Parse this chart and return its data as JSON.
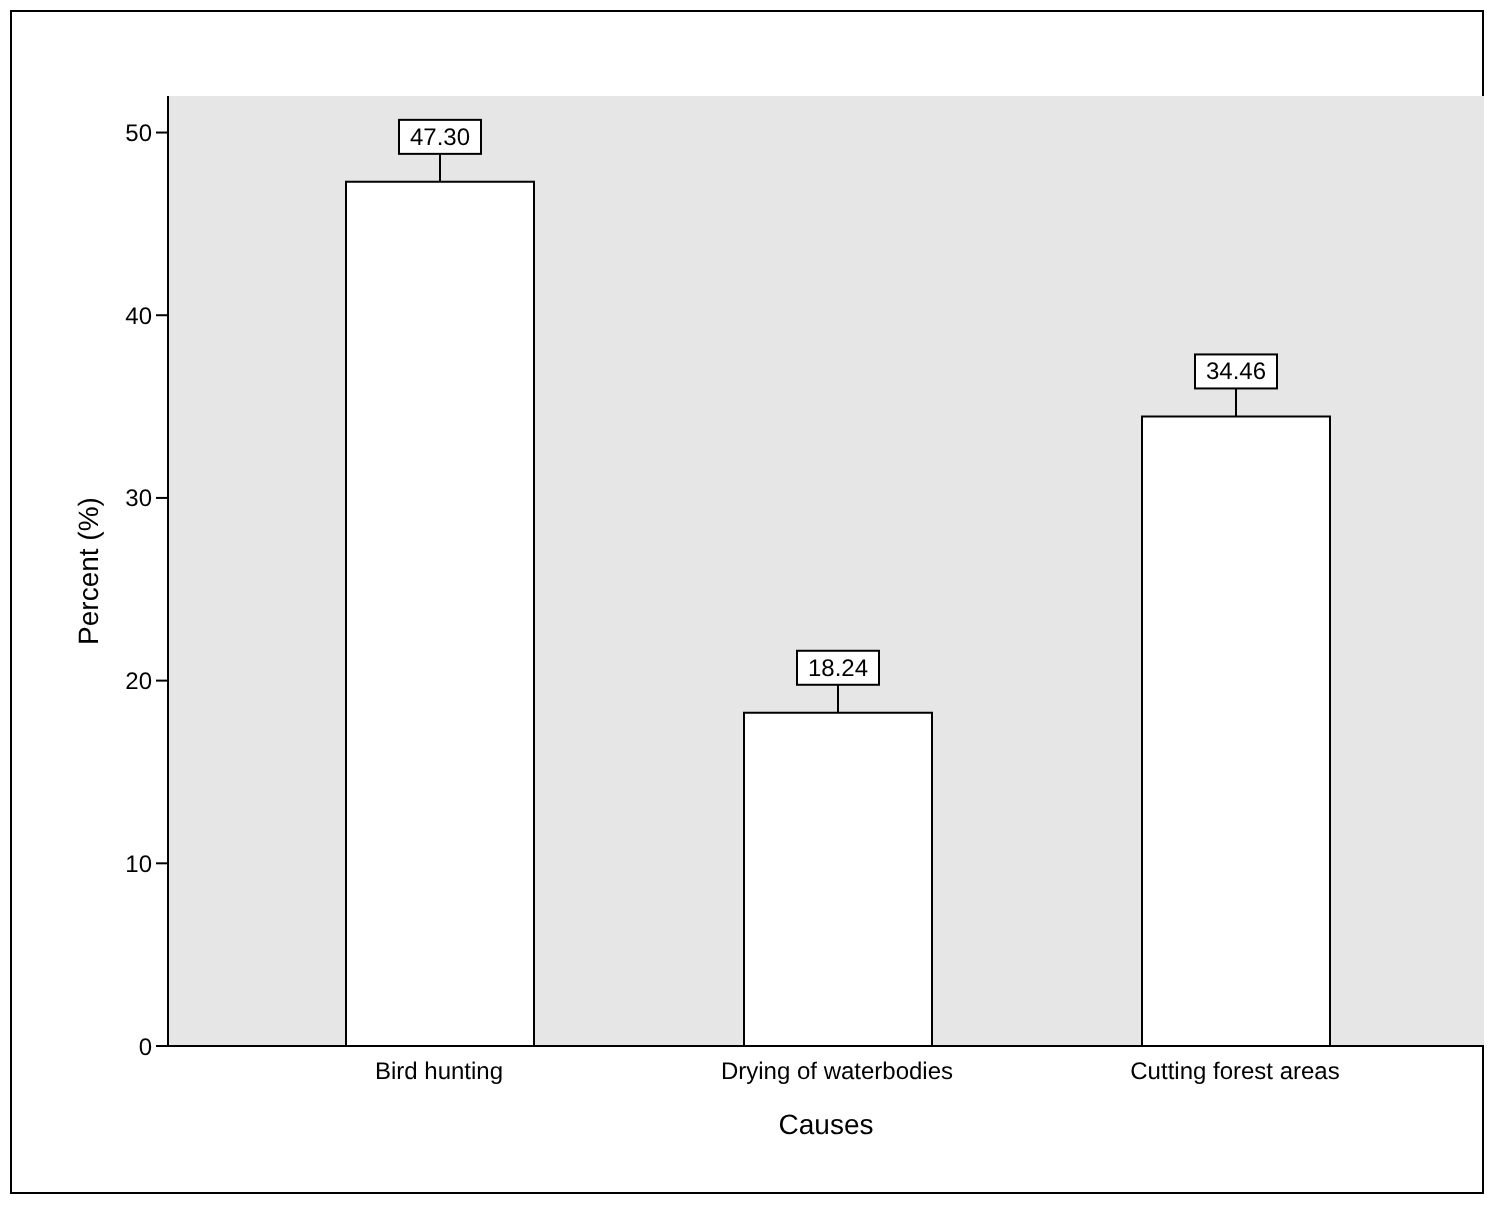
{
  "chart_data": {
    "type": "bar",
    "xlabel": "Causes",
    "ylabel": "Percent (%)",
    "categories": [
      "Bird hunting",
      "Drying of waterbodies",
      "Cutting forest areas"
    ],
    "values": [
      47.3,
      18.24,
      34.46
    ],
    "color": "#ffffff",
    "value_labels": [
      "47.30",
      "18.24",
      "34.46"
    ],
    "ylim": [
      0,
      52
    ],
    "yticks": [
      0,
      10,
      20,
      30,
      40,
      50
    ],
    "grid": false
  }
}
